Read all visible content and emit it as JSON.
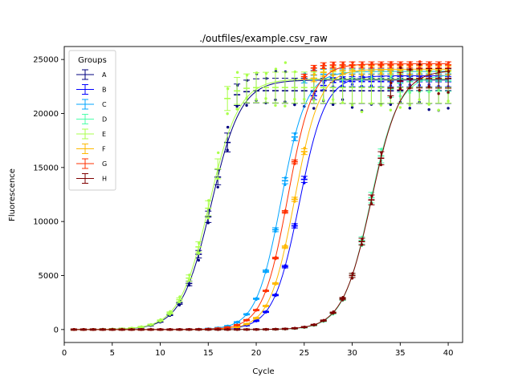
{
  "chart_data": {
    "type": "line",
    "title": "./outfiles/example.csv_raw",
    "xlabel": "Cycle",
    "ylabel": "Fluorescence",
    "xlim": [
      0,
      41.5
    ],
    "ylim": [
      -1200,
      26200
    ],
    "xticks": [
      0,
      5,
      10,
      15,
      20,
      25,
      30,
      35,
      40
    ],
    "yticks": [
      0,
      5000,
      10000,
      15000,
      20000,
      25000
    ],
    "xtick_labels": [
      "0",
      "5",
      "10",
      "15",
      "20",
      "25",
      "30",
      "35",
      "40"
    ],
    "ytick_labels": [
      "0",
      "5000",
      "10000",
      "15000",
      "20000",
      "25000"
    ],
    "grid": false,
    "legend": {
      "title": "Groups",
      "placement": "upper left"
    },
    "series": [
      {
        "name": "A",
        "color": "#00007f",
        "plateau": 23100,
        "midpoint": 15.3,
        "slope": 1.55,
        "scatter": [
          20200,
          24000
        ]
      },
      {
        "name": "B",
        "color": "#0000ff",
        "plateau": 23500,
        "midpoint": 24.5,
        "slope": 1.35,
        "scatter": [
          22300,
          23600
        ]
      },
      {
        "name": "C",
        "color": "#00a4ff",
        "plateau": 23900,
        "midpoint": 22.6,
        "slope": 1.3,
        "scatter": [
          23000,
          24300
        ]
      },
      {
        "name": "D",
        "color": "#4cffaa",
        "plateau": 23600,
        "midpoint": 31.9,
        "slope": 1.45,
        "scatter": [
          21500,
          24500
        ]
      },
      {
        "name": "E",
        "color": "#aaff4c",
        "plateau": 23200,
        "midpoint": 15.1,
        "slope": 1.55,
        "scatter": [
          20000,
          24800
        ]
      },
      {
        "name": "F",
        "color": "#ffb900",
        "plateau": 24100,
        "midpoint": 24.0,
        "slope": 1.3,
        "scatter": [
          23500,
          24500
        ]
      },
      {
        "name": "G",
        "color": "#ff3000",
        "plateau": 24600,
        "midpoint": 23.3,
        "slope": 1.3,
        "scatter": [
          24200,
          24800
        ]
      },
      {
        "name": "H",
        "color": "#7f0000",
        "plateau": 24000,
        "midpoint": 32.0,
        "slope": 1.5,
        "scatter": [
          21800,
          24700
        ]
      }
    ],
    "cycles_from": 1,
    "cycles_to": 40
  }
}
